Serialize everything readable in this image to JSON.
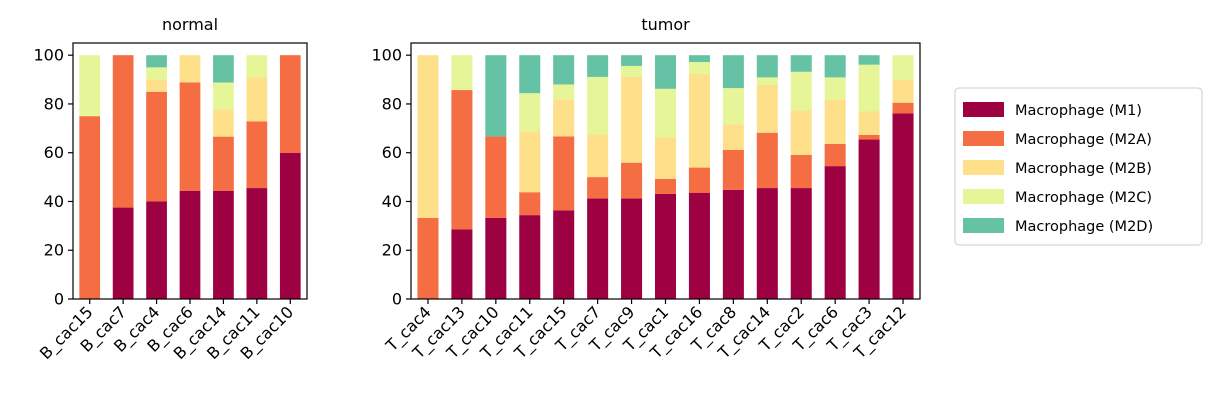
{
  "chart_data": [
    {
      "type": "bar",
      "stacked": true,
      "title": "normal",
      "ylim": [
        0,
        105
      ],
      "yticks": [
        0,
        20,
        40,
        60,
        80,
        100
      ],
      "grid": false,
      "categories": [
        "B_cac15",
        "B_cac7",
        "B_cac4",
        "B_cac6",
        "B_cac14",
        "B_cac11",
        "B_cac10"
      ],
      "series": [
        {
          "name": "Macrophage (M1)",
          "color": "#9e0142",
          "values": [
            0,
            37.5,
            40,
            44.4,
            44.4,
            45.5,
            60
          ]
        },
        {
          "name": "Macrophage (M2A)",
          "color": "#f46d43",
          "values": [
            75,
            62.5,
            45,
            44.4,
            22.2,
            27.3,
            40
          ]
        },
        {
          "name": "Macrophage (M2B)",
          "color": "#fee08b",
          "values": [
            0,
            0,
            5,
            11.2,
            11.1,
            18.2,
            0
          ]
        },
        {
          "name": "Macrophage (M2C)",
          "color": "#e6f598",
          "values": [
            25,
            0,
            5,
            0,
            11.1,
            9,
            0
          ]
        },
        {
          "name": "Macrophage (M2D)",
          "color": "#66c2a5",
          "values": [
            0,
            0,
            5,
            0,
            11.2,
            0,
            0
          ]
        }
      ]
    },
    {
      "type": "bar",
      "stacked": true,
      "title": "tumor",
      "ylim": [
        0,
        105
      ],
      "yticks": [
        0,
        20,
        40,
        60,
        80,
        100
      ],
      "grid": false,
      "categories": [
        "T_cac4",
        "T_cac13",
        "T_cac10",
        "T_cac11",
        "T_cac15",
        "T_cac7",
        "T_cac9",
        "T_cac1",
        "T_cac16",
        "T_cac8",
        "T_cac14",
        "T_cac2",
        "T_cac6",
        "T_cac3",
        "T_cac12"
      ],
      "series": [
        {
          "name": "Macrophage (M1)",
          "color": "#9e0142",
          "values": [
            0,
            28.6,
            33.3,
            34.4,
            36.4,
            41.2,
            41.2,
            43.1,
            43.6,
            44.8,
            45.5,
            45.5,
            54.5,
            65.4,
            76.1
          ]
        },
        {
          "name": "Macrophage (M2A)",
          "color": "#f46d43",
          "values": [
            33.3,
            57.1,
            33.4,
            9.4,
            30.3,
            8.8,
            14.7,
            6.2,
            10.3,
            16.4,
            22.7,
            13.6,
            9.1,
            1.9,
            4.4
          ]
        },
        {
          "name": "Macrophage (M2B)",
          "color": "#fee08b",
          "values": [
            66.7,
            0,
            0,
            25,
            15.2,
            17.6,
            35.3,
            16.9,
            38.5,
            10.4,
            19.7,
            18.2,
            18.2,
            9.6,
            9.5
          ]
        },
        {
          "name": "Macrophage (M2C)",
          "color": "#e6f598",
          "values": [
            0,
            14.3,
            0,
            15.6,
            6.1,
            23.5,
            4.4,
            20.0,
            4.8,
            14.9,
            3.0,
            15.9,
            9.1,
            19.2,
            10.0
          ]
        },
        {
          "name": "Macrophage (M2D)",
          "color": "#66c2a5",
          "values": [
            0,
            0,
            33.3,
            15.6,
            12.0,
            8.9,
            4.4,
            13.8,
            2.8,
            13.5,
            9.1,
            6.8,
            9.1,
            3.9,
            0
          ]
        }
      ]
    }
  ],
  "legend": {
    "placement": "right",
    "entries": [
      "Macrophage (M1)",
      "Macrophage (M2A)",
      "Macrophage (M2B)",
      "Macrophage (M2C)",
      "Macrophage (M2D)"
    ],
    "colors": [
      "#9e0142",
      "#f46d43",
      "#fee08b",
      "#e6f598",
      "#66c2a5"
    ]
  }
}
